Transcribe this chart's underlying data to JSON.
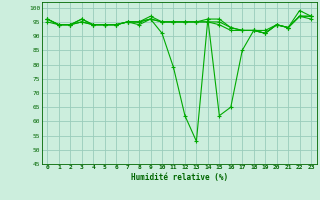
{
  "title": "",
  "xlabel": "Humidité relative (%)",
  "ylabel": "",
  "background_color": "#cceedd",
  "grid_color": "#99ccbb",
  "line_color": "#00aa00",
  "marker_color": "#00aa00",
  "xlim": [
    -0.5,
    23.5
  ],
  "ylim": [
    45,
    102
  ],
  "yticks": [
    45,
    50,
    55,
    60,
    65,
    70,
    75,
    80,
    85,
    90,
    95,
    100
  ],
  "xticks": [
    0,
    1,
    2,
    3,
    4,
    5,
    6,
    7,
    8,
    9,
    10,
    11,
    12,
    13,
    14,
    15,
    16,
    17,
    18,
    19,
    20,
    21,
    22,
    23
  ],
  "series": [
    [
      96,
      94,
      94,
      96,
      94,
      94,
      94,
      95,
      94,
      96,
      91,
      79,
      62,
      53,
      96,
      62,
      65,
      85,
      92,
      92,
      94,
      93,
      99,
      97
    ],
    [
      96,
      94,
      94,
      96,
      94,
      94,
      94,
      95,
      95,
      97,
      95,
      95,
      95,
      95,
      96,
      96,
      93,
      92,
      92,
      91,
      94,
      93,
      97,
      97
    ],
    [
      96,
      94,
      94,
      95,
      94,
      94,
      94,
      95,
      95,
      96,
      95,
      95,
      95,
      95,
      95,
      95,
      93,
      92,
      92,
      91,
      94,
      93,
      97,
      97
    ],
    [
      95,
      94,
      94,
      95,
      94,
      94,
      94,
      95,
      95,
      96,
      95,
      95,
      95,
      95,
      95,
      94,
      92,
      92,
      92,
      91,
      94,
      93,
      97,
      96
    ]
  ]
}
